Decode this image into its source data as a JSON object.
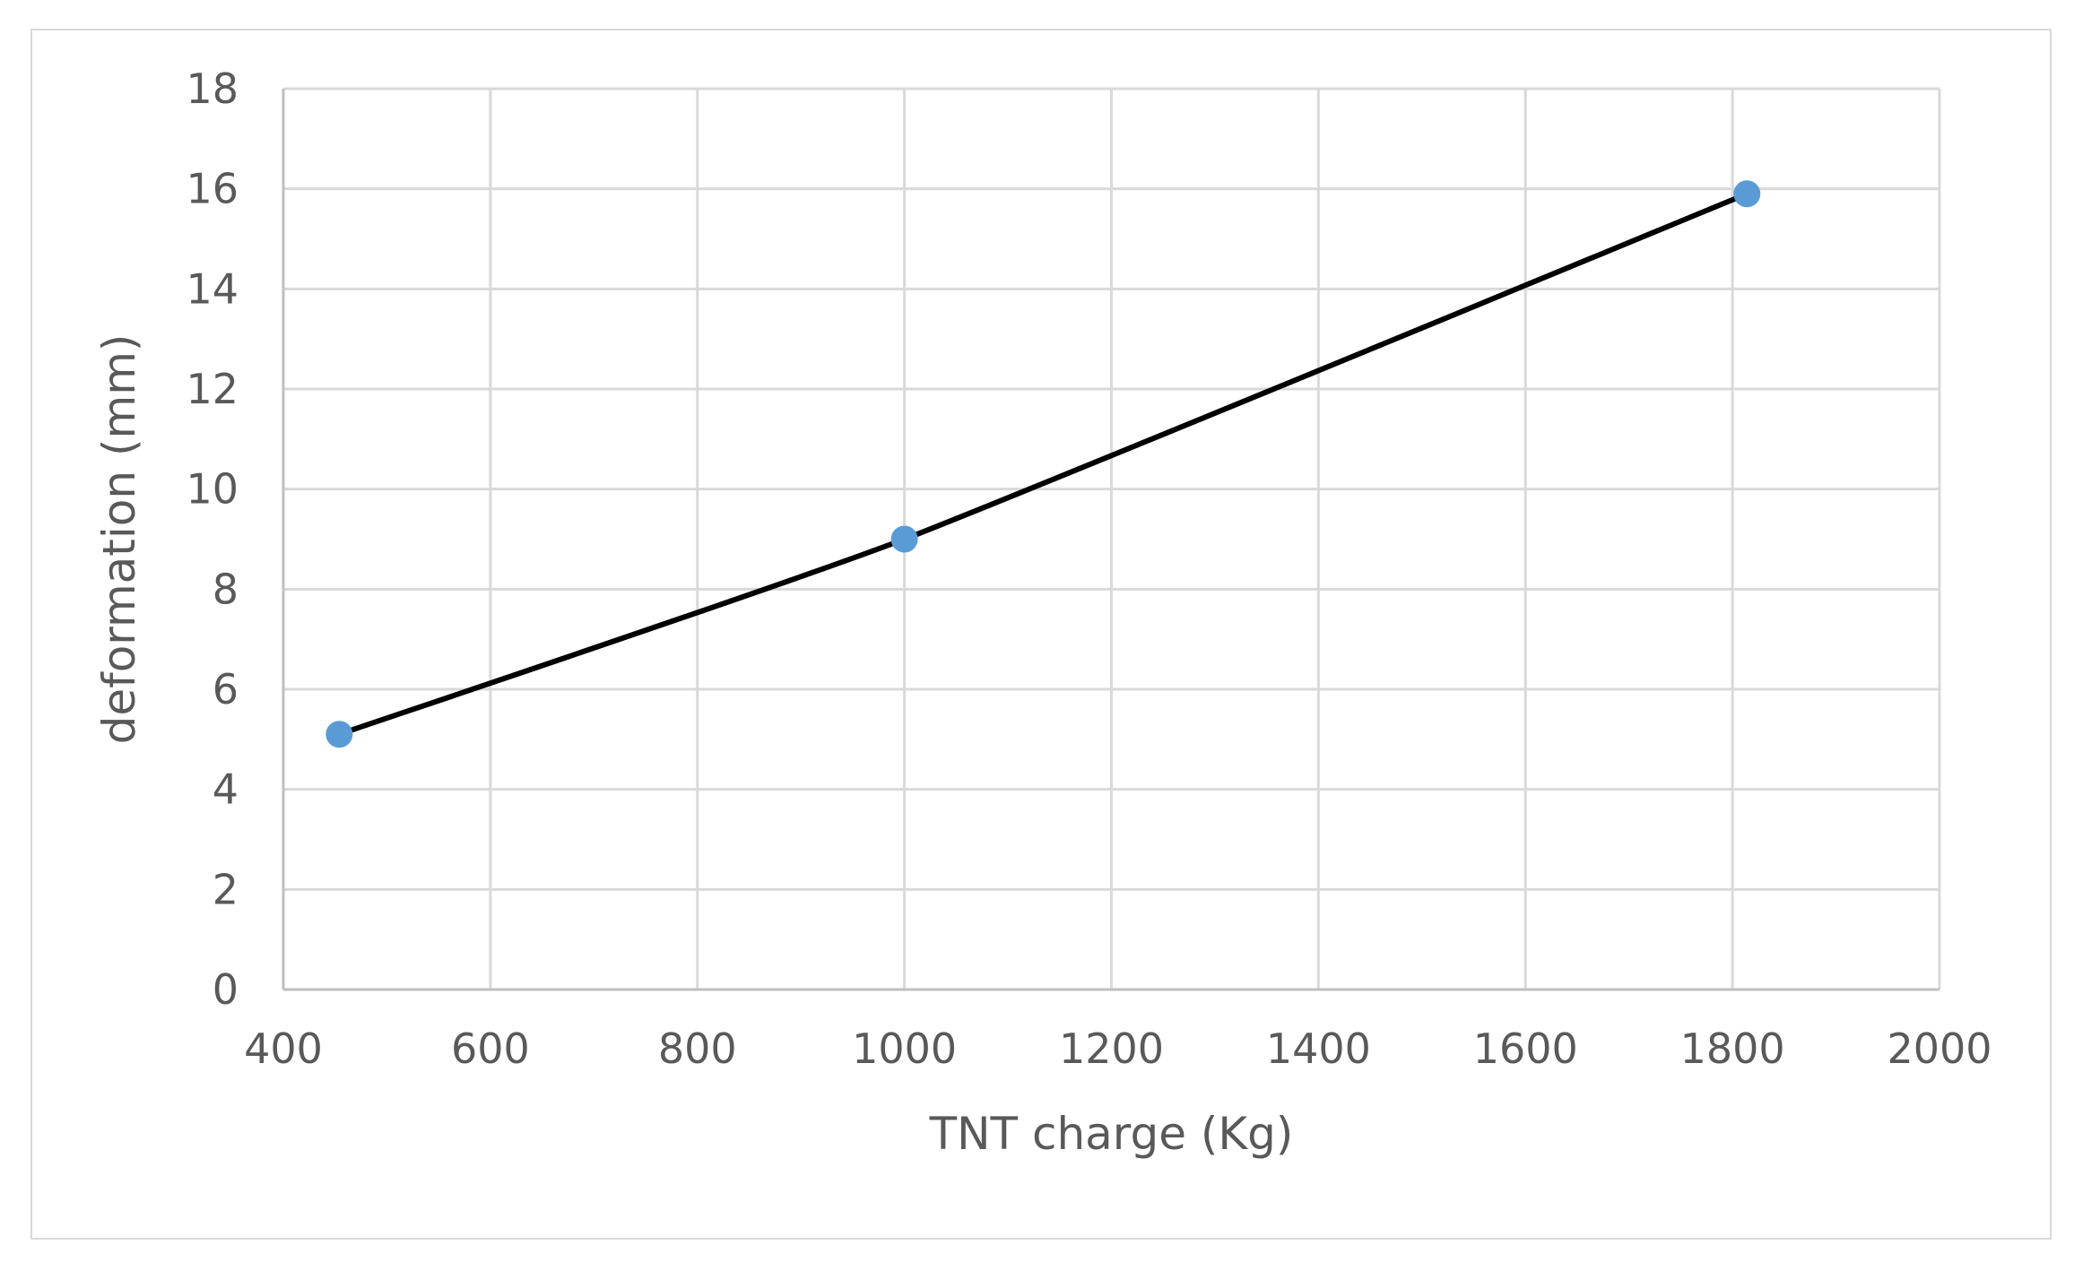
{
  "chart_data": {
    "type": "scatter",
    "title": "",
    "xlabel": "TNT  charge (Kg)",
    "ylabel": "deformation (mm)",
    "xlim": [
      400,
      2000
    ],
    "ylim": [
      0,
      18
    ],
    "x_ticks": [
      400,
      600,
      800,
      1000,
      1200,
      1400,
      1600,
      1800,
      2000
    ],
    "y_ticks": [
      0,
      2,
      4,
      6,
      8,
      10,
      12,
      14,
      16,
      18
    ],
    "grid": true,
    "legend": "none",
    "series": [
      {
        "x": [
          454,
          1000,
          1814
        ],
        "y": [
          5.1,
          9.0,
          15.9
        ],
        "marker_color": "#5b9bd5",
        "line_color": "#000000",
        "line": "smooth"
      }
    ]
  }
}
